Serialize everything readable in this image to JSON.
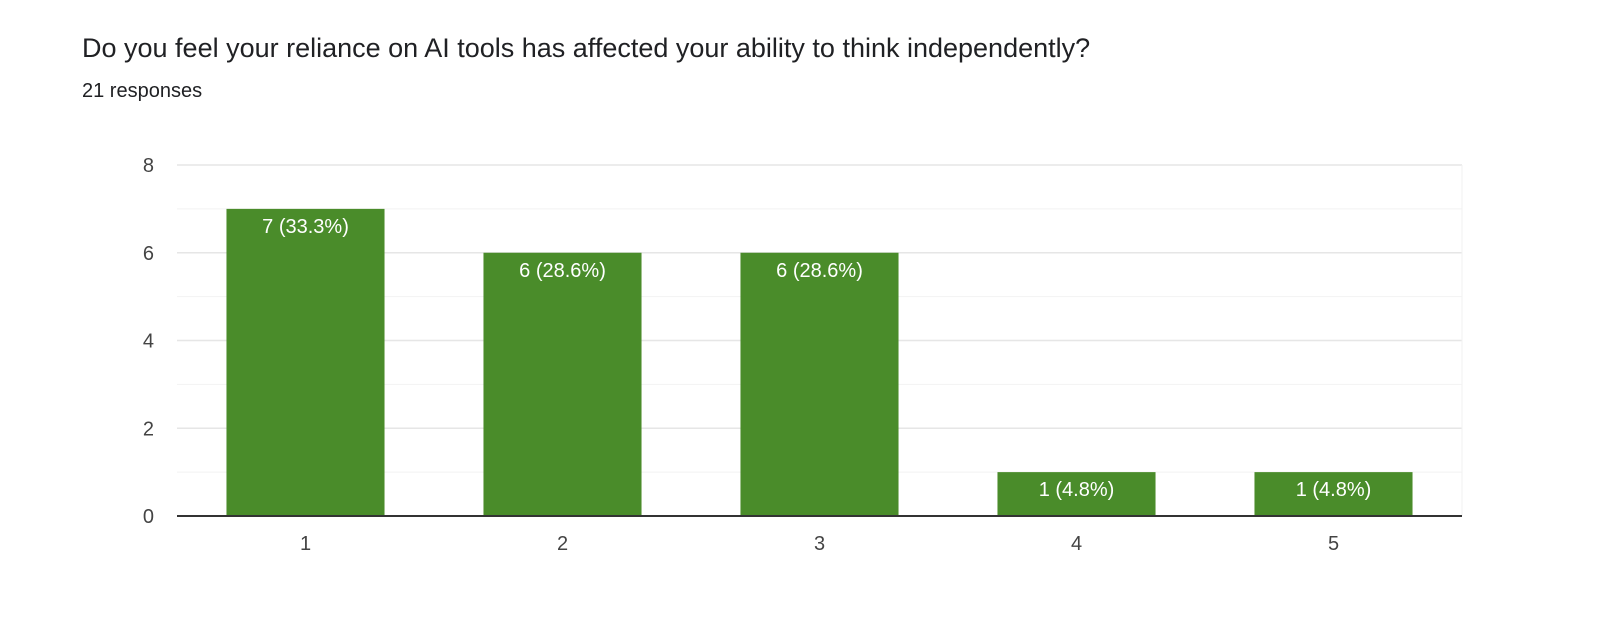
{
  "question": {
    "title": "Do you feel your reliance on AI tools has affected your ability to think independently?",
    "responses": "21 responses"
  },
  "colors": {
    "bar": "#4a8c2a",
    "grid": "#e6e6e6",
    "minor_grid": "#f2f2f2",
    "axis": "#333333"
  },
  "chart_data": {
    "type": "bar",
    "categories": [
      "1",
      "2",
      "3",
      "4",
      "5"
    ],
    "values": [
      7,
      6,
      6,
      1,
      1
    ],
    "data_labels": [
      "7 (33.3%)",
      "6 (28.6%)",
      "6 (28.6%)",
      "1 (4.8%)",
      "1 (4.8%)"
    ],
    "ylim": [
      0,
      8
    ],
    "yticks": [
      0,
      2,
      4,
      6,
      8
    ],
    "grid": true
  }
}
